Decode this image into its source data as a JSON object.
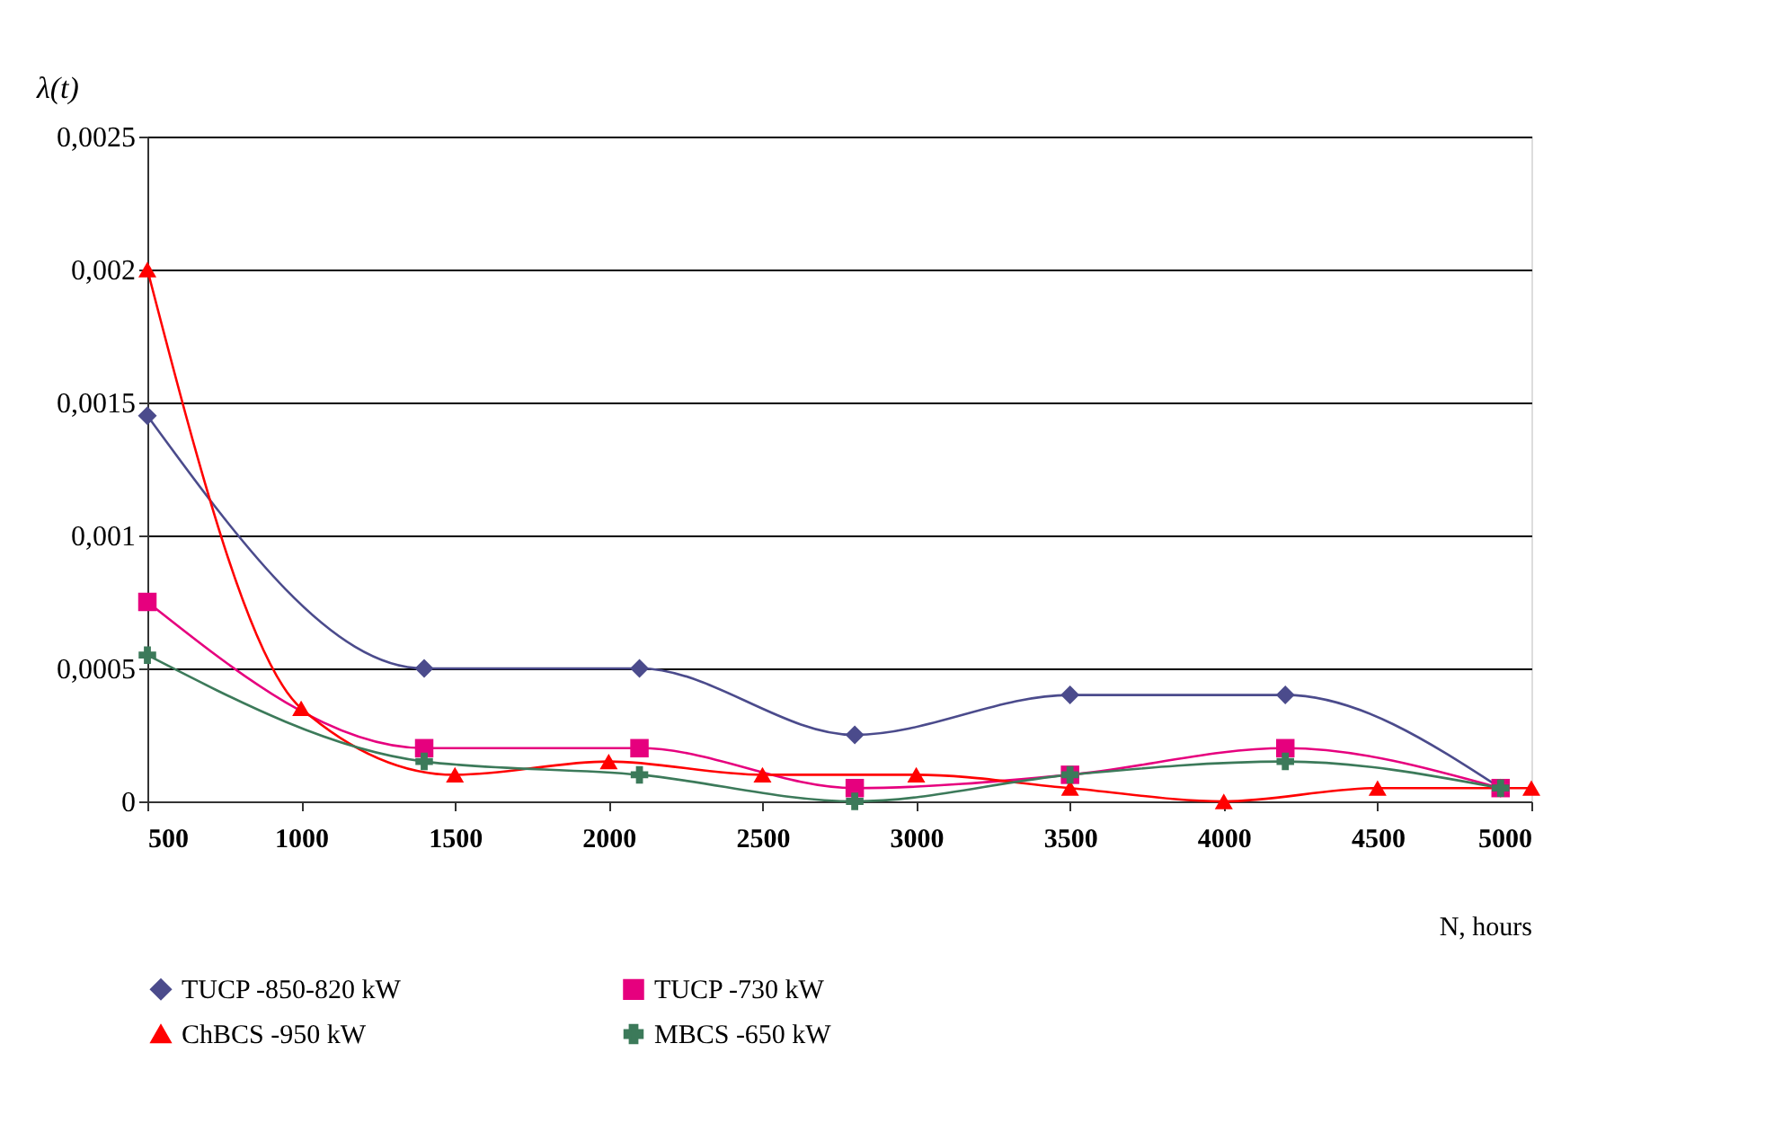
{
  "chart_data": {
    "type": "line",
    "ylabel": "λ(t)",
    "xlabel": "N, hours",
    "xlim": [
      500,
      5000
    ],
    "xticks": [
      500,
      1000,
      1500,
      2000,
      2500,
      3000,
      3500,
      4000,
      4500,
      5000
    ],
    "ylim": [
      0,
      0.0025
    ],
    "yticks": [
      {
        "value": 0,
        "label": "0"
      },
      {
        "value": 0.0005,
        "label": "0,0005"
      },
      {
        "value": 0.001,
        "label": "0,001"
      },
      {
        "value": 0.0015,
        "label": "0,0015"
      },
      {
        "value": 0.002,
        "label": "0,002"
      },
      {
        "value": 0.0025,
        "label": "0,0025"
      }
    ],
    "grid": "y",
    "legend": "bottom",
    "series": [
      {
        "name": "TUCP -850-820 kW",
        "color": "#4b4b8c",
        "marker": "diamond",
        "x": [
          500,
          1400,
          2100,
          2800,
          3500,
          4200,
          4900
        ],
        "values": [
          0.00145,
          0.0005,
          0.0005,
          0.00025,
          0.0004,
          0.0004,
          5e-05
        ]
      },
      {
        "name": "TUCP -730 kW",
        "color": "#e6007e",
        "marker": "square",
        "x": [
          500,
          1400,
          2100,
          2800,
          3500,
          4200,
          4900
        ],
        "values": [
          0.00075,
          0.0002,
          0.0002,
          5e-05,
          0.0001,
          0.0002,
          5e-05
        ]
      },
      {
        "name": "ChBCS -950 kW",
        "color": "#ff0000",
        "marker": "triangle",
        "x": [
          500,
          1000,
          1500,
          2000,
          2500,
          3000,
          3500,
          4000,
          4500,
          5000
        ],
        "values": [
          0.002,
          0.00035,
          0.0001,
          0.00015,
          0.0001,
          0.0001,
          5e-05,
          0,
          5e-05,
          5e-05
        ]
      },
      {
        "name": "MBCS -650 kW",
        "color": "#3c7a5a",
        "marker": "cross",
        "x": [
          500,
          1400,
          2100,
          2800,
          3500,
          4200,
          4900
        ],
        "values": [
          0.00055,
          0.00015,
          0.0001,
          0,
          0.0001,
          0.00015,
          5e-05
        ]
      }
    ]
  }
}
